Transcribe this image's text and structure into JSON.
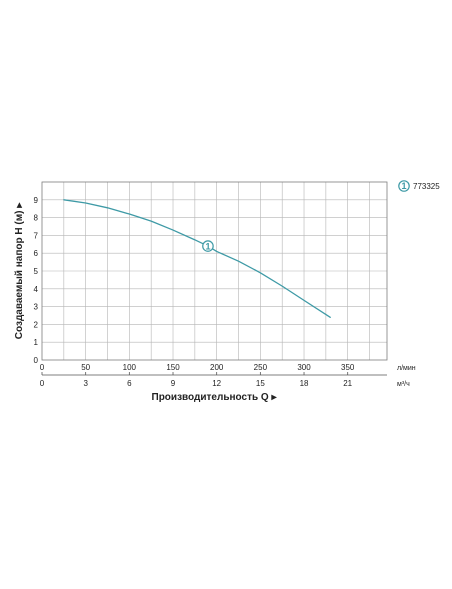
{
  "chart_data": {
    "type": "line",
    "ylabel": "Создаваемый напор H (м) ▸",
    "xlabel": "Производительность Q ▸",
    "x_primary": {
      "unit": "л/мин",
      "ticks": [
        "0",
        "50",
        "100",
        "150",
        "200",
        "250",
        "300",
        "350"
      ],
      "lim": [
        0,
        395
      ]
    },
    "x_secondary": {
      "unit": "м³/ч",
      "ticks": [
        "0",
        "3",
        "6",
        "9",
        "12",
        "15",
        "18",
        "21"
      ]
    },
    "y": {
      "ticks": [
        "0",
        "1",
        "2",
        "3",
        "4",
        "5",
        "6",
        "7",
        "8",
        "9"
      ],
      "lim": [
        0,
        10
      ]
    },
    "grid": true,
    "legend_position": "top-right",
    "series": [
      {
        "name": "773325",
        "marker": "1",
        "color": "#3e9aa6",
        "x": [
          25,
          50,
          75,
          100,
          125,
          150,
          175,
          190,
          200,
          225,
          250,
          275,
          300,
          330
        ],
        "y": [
          9.0,
          8.82,
          8.55,
          8.2,
          7.8,
          7.3,
          6.75,
          6.4,
          6.1,
          5.55,
          4.9,
          4.15,
          3.35,
          2.4
        ],
        "marker_at": [
          190,
          6.4
        ]
      }
    ]
  }
}
